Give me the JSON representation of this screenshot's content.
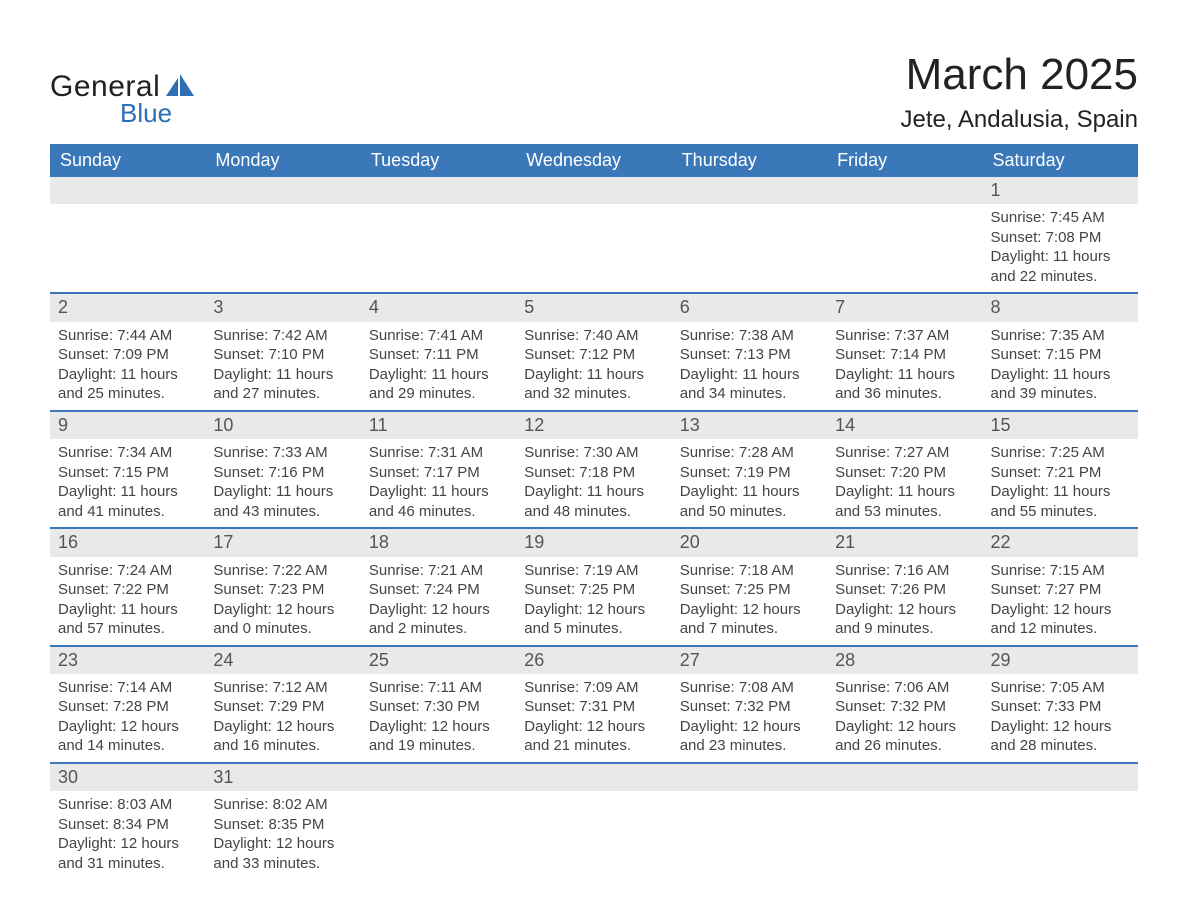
{
  "logo": {
    "text1": "General",
    "text2": "Blue",
    "brand_color": "#2d6fb5"
  },
  "title": "March 2025",
  "location": "Jete, Andalusia, Spain",
  "colors": {
    "header_bg": "#3a78b9",
    "header_text": "#ffffff",
    "daynum_bg": "#e9e9e9",
    "row_border": "#3a78b9",
    "text": "#444444"
  },
  "weekdays": [
    "Sunday",
    "Monday",
    "Tuesday",
    "Wednesday",
    "Thursday",
    "Friday",
    "Saturday"
  ],
  "weeks": [
    {
      "nums": [
        "",
        "",
        "",
        "",
        "",
        "",
        "1"
      ],
      "cells": [
        null,
        null,
        null,
        null,
        null,
        null,
        {
          "sr": "Sunrise: 7:45 AM",
          "ss": "Sunset: 7:08 PM",
          "d1": "Daylight: 11 hours",
          "d2": "and 22 minutes."
        }
      ]
    },
    {
      "nums": [
        "2",
        "3",
        "4",
        "5",
        "6",
        "7",
        "8"
      ],
      "cells": [
        {
          "sr": "Sunrise: 7:44 AM",
          "ss": "Sunset: 7:09 PM",
          "d1": "Daylight: 11 hours",
          "d2": "and 25 minutes."
        },
        {
          "sr": "Sunrise: 7:42 AM",
          "ss": "Sunset: 7:10 PM",
          "d1": "Daylight: 11 hours",
          "d2": "and 27 minutes."
        },
        {
          "sr": "Sunrise: 7:41 AM",
          "ss": "Sunset: 7:11 PM",
          "d1": "Daylight: 11 hours",
          "d2": "and 29 minutes."
        },
        {
          "sr": "Sunrise: 7:40 AM",
          "ss": "Sunset: 7:12 PM",
          "d1": "Daylight: 11 hours",
          "d2": "and 32 minutes."
        },
        {
          "sr": "Sunrise: 7:38 AM",
          "ss": "Sunset: 7:13 PM",
          "d1": "Daylight: 11 hours",
          "d2": "and 34 minutes."
        },
        {
          "sr": "Sunrise: 7:37 AM",
          "ss": "Sunset: 7:14 PM",
          "d1": "Daylight: 11 hours",
          "d2": "and 36 minutes."
        },
        {
          "sr": "Sunrise: 7:35 AM",
          "ss": "Sunset: 7:15 PM",
          "d1": "Daylight: 11 hours",
          "d2": "and 39 minutes."
        }
      ]
    },
    {
      "nums": [
        "9",
        "10",
        "11",
        "12",
        "13",
        "14",
        "15"
      ],
      "cells": [
        {
          "sr": "Sunrise: 7:34 AM",
          "ss": "Sunset: 7:15 PM",
          "d1": "Daylight: 11 hours",
          "d2": "and 41 minutes."
        },
        {
          "sr": "Sunrise: 7:33 AM",
          "ss": "Sunset: 7:16 PM",
          "d1": "Daylight: 11 hours",
          "d2": "and 43 minutes."
        },
        {
          "sr": "Sunrise: 7:31 AM",
          "ss": "Sunset: 7:17 PM",
          "d1": "Daylight: 11 hours",
          "d2": "and 46 minutes."
        },
        {
          "sr": "Sunrise: 7:30 AM",
          "ss": "Sunset: 7:18 PM",
          "d1": "Daylight: 11 hours",
          "d2": "and 48 minutes."
        },
        {
          "sr": "Sunrise: 7:28 AM",
          "ss": "Sunset: 7:19 PM",
          "d1": "Daylight: 11 hours",
          "d2": "and 50 minutes."
        },
        {
          "sr": "Sunrise: 7:27 AM",
          "ss": "Sunset: 7:20 PM",
          "d1": "Daylight: 11 hours",
          "d2": "and 53 minutes."
        },
        {
          "sr": "Sunrise: 7:25 AM",
          "ss": "Sunset: 7:21 PM",
          "d1": "Daylight: 11 hours",
          "d2": "and 55 minutes."
        }
      ]
    },
    {
      "nums": [
        "16",
        "17",
        "18",
        "19",
        "20",
        "21",
        "22"
      ],
      "cells": [
        {
          "sr": "Sunrise: 7:24 AM",
          "ss": "Sunset: 7:22 PM",
          "d1": "Daylight: 11 hours",
          "d2": "and 57 minutes."
        },
        {
          "sr": "Sunrise: 7:22 AM",
          "ss": "Sunset: 7:23 PM",
          "d1": "Daylight: 12 hours",
          "d2": "and 0 minutes."
        },
        {
          "sr": "Sunrise: 7:21 AM",
          "ss": "Sunset: 7:24 PM",
          "d1": "Daylight: 12 hours",
          "d2": "and 2 minutes."
        },
        {
          "sr": "Sunrise: 7:19 AM",
          "ss": "Sunset: 7:25 PM",
          "d1": "Daylight: 12 hours",
          "d2": "and 5 minutes."
        },
        {
          "sr": "Sunrise: 7:18 AM",
          "ss": "Sunset: 7:25 PM",
          "d1": "Daylight: 12 hours",
          "d2": "and 7 minutes."
        },
        {
          "sr": "Sunrise: 7:16 AM",
          "ss": "Sunset: 7:26 PM",
          "d1": "Daylight: 12 hours",
          "d2": "and 9 minutes."
        },
        {
          "sr": "Sunrise: 7:15 AM",
          "ss": "Sunset: 7:27 PM",
          "d1": "Daylight: 12 hours",
          "d2": "and 12 minutes."
        }
      ]
    },
    {
      "nums": [
        "23",
        "24",
        "25",
        "26",
        "27",
        "28",
        "29"
      ],
      "cells": [
        {
          "sr": "Sunrise: 7:14 AM",
          "ss": "Sunset: 7:28 PM",
          "d1": "Daylight: 12 hours",
          "d2": "and 14 minutes."
        },
        {
          "sr": "Sunrise: 7:12 AM",
          "ss": "Sunset: 7:29 PM",
          "d1": "Daylight: 12 hours",
          "d2": "and 16 minutes."
        },
        {
          "sr": "Sunrise: 7:11 AM",
          "ss": "Sunset: 7:30 PM",
          "d1": "Daylight: 12 hours",
          "d2": "and 19 minutes."
        },
        {
          "sr": "Sunrise: 7:09 AM",
          "ss": "Sunset: 7:31 PM",
          "d1": "Daylight: 12 hours",
          "d2": "and 21 minutes."
        },
        {
          "sr": "Sunrise: 7:08 AM",
          "ss": "Sunset: 7:32 PM",
          "d1": "Daylight: 12 hours",
          "d2": "and 23 minutes."
        },
        {
          "sr": "Sunrise: 7:06 AM",
          "ss": "Sunset: 7:32 PM",
          "d1": "Daylight: 12 hours",
          "d2": "and 26 minutes."
        },
        {
          "sr": "Sunrise: 7:05 AM",
          "ss": "Sunset: 7:33 PM",
          "d1": "Daylight: 12 hours",
          "d2": "and 28 minutes."
        }
      ]
    },
    {
      "nums": [
        "30",
        "31",
        "",
        "",
        "",
        "",
        ""
      ],
      "cells": [
        {
          "sr": "Sunrise: 8:03 AM",
          "ss": "Sunset: 8:34 PM",
          "d1": "Daylight: 12 hours",
          "d2": "and 31 minutes."
        },
        {
          "sr": "Sunrise: 8:02 AM",
          "ss": "Sunset: 8:35 PM",
          "d1": "Daylight: 12 hours",
          "d2": "and 33 minutes."
        },
        null,
        null,
        null,
        null,
        null
      ]
    }
  ]
}
